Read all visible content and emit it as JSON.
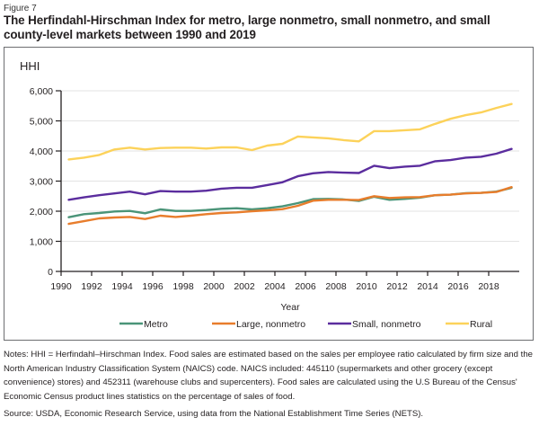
{
  "figure_label": "Figure 7",
  "title": "The Herfindahl-Hirschman Index for metro, large nonmetro, small nonmetro, and small county-level markets between 1990 and 2019",
  "notes": "Notes: HHI = Herfindahl–Hirschman Index. Food sales are estimated based on the sales per employee ratio calculated by firm size and the North American Industry Classification System (NAICS) code. NAICS included: 445110 (supermarkets and other grocery (except convenience) stores) and 452311 (warehouse clubs and supercenters). Food sales are calculated using the U.S Bureau of the Census' Economic Census product lines statistics on the percentage of sales of food.",
  "source": "Source: USDA, Economic Research Service, using data from the National Establishment Time Series (NETS).",
  "chart_data": {
    "type": "line",
    "title": "The Herfindahl-Hirschman Index for metro, large nonmetro, small nonmetro, and small county-level markets between 1990 and 2019",
    "ylabel": "HHI",
    "xlabel": "Year",
    "ylim": [
      0,
      6000
    ],
    "yticks": [
      0,
      1000,
      2000,
      3000,
      4000,
      5000,
      6000
    ],
    "ytick_labels": [
      "0",
      "1,000",
      "2,000",
      "3,000",
      "4,000",
      "5,000",
      "6,000"
    ],
    "xlim": [
      1990,
      2020
    ],
    "xticks": [
      1990,
      1992,
      1994,
      1996,
      1998,
      2000,
      2002,
      2004,
      2006,
      2008,
      2010,
      2012,
      2014,
      2016,
      2018
    ],
    "xtick_labels": [
      "1990",
      "1992",
      "1994",
      "1996",
      "1998",
      "2000",
      "2002",
      "2004",
      "2006",
      "2008",
      "2010",
      "2012",
      "2014",
      "2016",
      "2018"
    ],
    "grid": true,
    "legend_position": "bottom",
    "x": [
      1990,
      1991,
      1992,
      1993,
      1994,
      1995,
      1996,
      1997,
      1998,
      1999,
      2000,
      2001,
      2002,
      2003,
      2004,
      2005,
      2006,
      2007,
      2008,
      2009,
      2010,
      2011,
      2012,
      2013,
      2014,
      2015,
      2016,
      2017,
      2018,
      2019
    ],
    "series": [
      {
        "name": "Metro",
        "color": "#4a9478",
        "values": [
          1800,
          1900,
          1940,
          1990,
          2010,
          1930,
          2060,
          2010,
          2010,
          2040,
          2080,
          2100,
          2060,
          2100,
          2160,
          2270,
          2400,
          2410,
          2390,
          2340,
          2480,
          2380,
          2410,
          2450,
          2530,
          2550,
          2600,
          2610,
          2650,
          2780
        ]
      },
      {
        "name": "Large, nonmetro",
        "color": "#e87d2c",
        "values": [
          1580,
          1670,
          1760,
          1790,
          1810,
          1740,
          1850,
          1810,
          1850,
          1900,
          1940,
          1960,
          2000,
          2030,
          2070,
          2180,
          2350,
          2380,
          2380,
          2370,
          2500,
          2440,
          2460,
          2470,
          2530,
          2550,
          2590,
          2610,
          2640,
          2800
        ]
      },
      {
        "name": "Small, nonmetro",
        "color": "#5b2d9e",
        "values": [
          2380,
          2460,
          2530,
          2590,
          2650,
          2560,
          2670,
          2650,
          2650,
          2680,
          2750,
          2780,
          2780,
          2870,
          2960,
          3160,
          3260,
          3300,
          3280,
          3270,
          3510,
          3430,
          3480,
          3510,
          3660,
          3700,
          3780,
          3810,
          3910,
          4070
        ]
      },
      {
        "name": "Rural",
        "color": "#fcd25a",
        "values": [
          3720,
          3780,
          3870,
          4050,
          4110,
          4050,
          4100,
          4110,
          4110,
          4080,
          4120,
          4120,
          4030,
          4180,
          4240,
          4480,
          4450,
          4420,
          4360,
          4320,
          4660,
          4660,
          4690,
          4720,
          4900,
          5070,
          5190,
          5280,
          5430,
          5560
        ]
      }
    ]
  }
}
